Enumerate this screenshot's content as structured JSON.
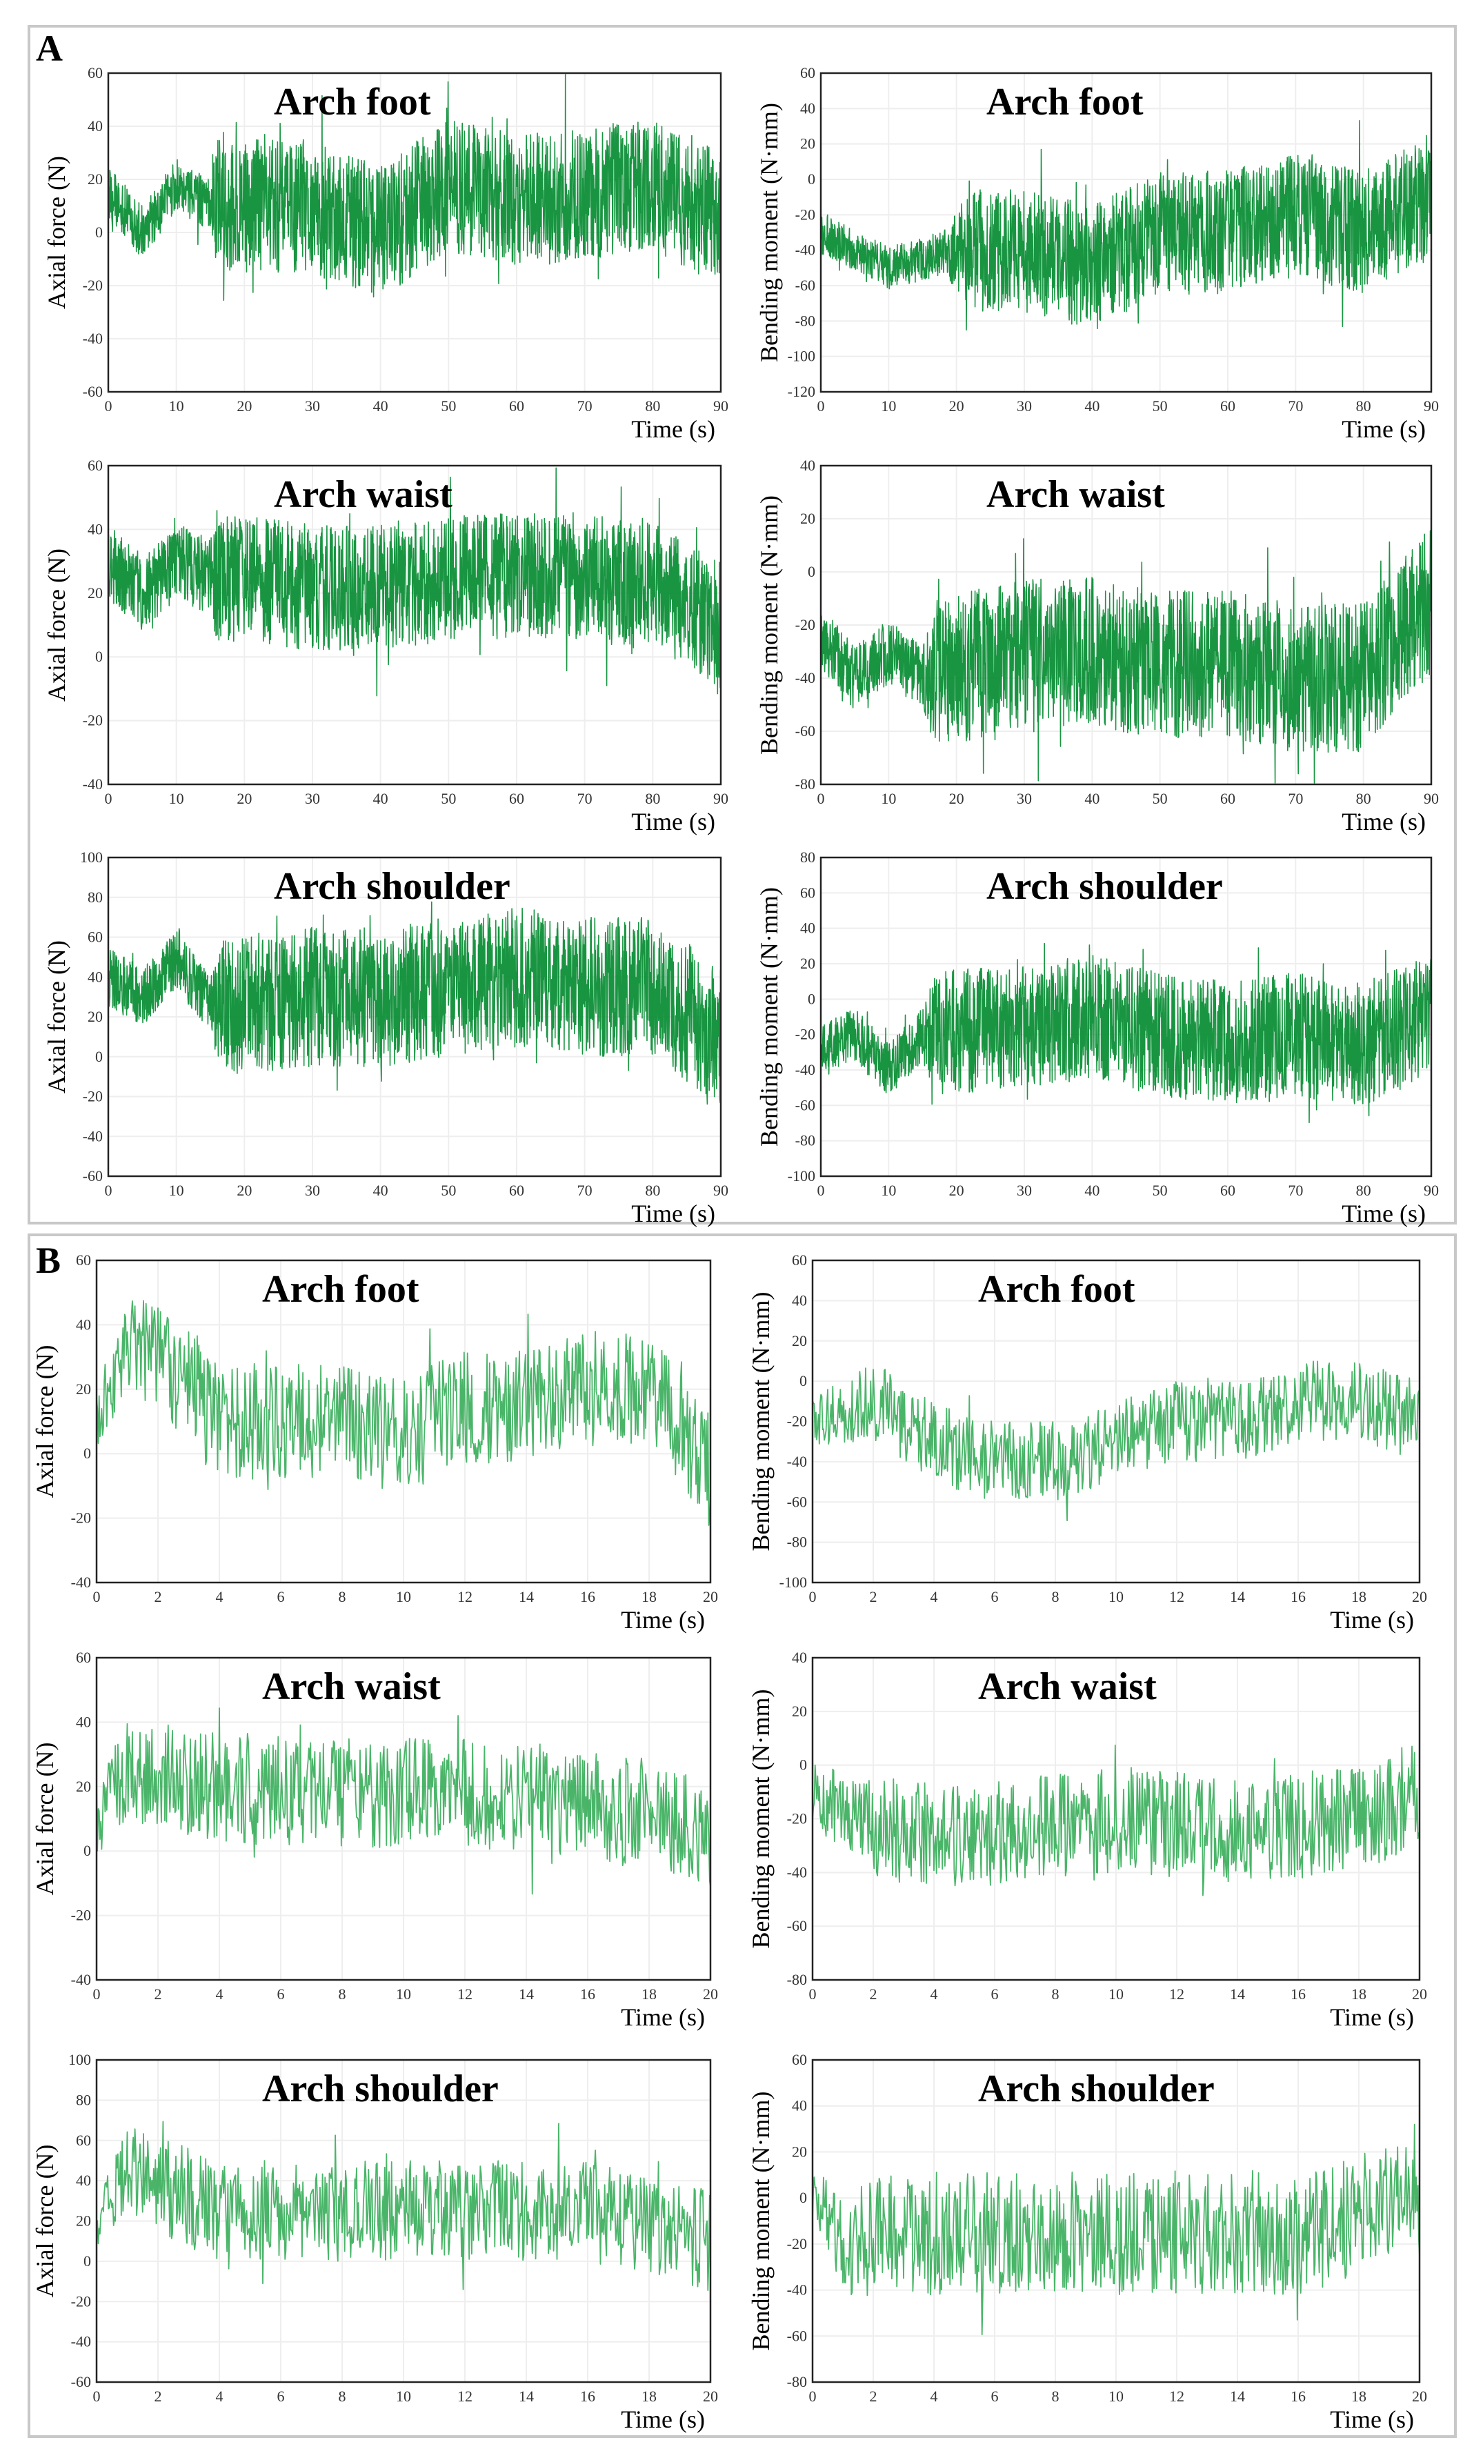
{
  "figure": {
    "panels": [
      {
        "label": "A",
        "line_color": "#008a2e",
        "density": "dense"
      },
      {
        "label": "B",
        "line_color": "#2aa84f",
        "density": "sparse"
      }
    ]
  },
  "chart_data": [
    {
      "type": "line",
      "panel": "A",
      "title": "Arch foot",
      "xlabel": "Time (s)",
      "ylabel": "Axial force (N)",
      "xlim": [
        0,
        90
      ],
      "ylim": [
        -60,
        60
      ],
      "xticks": [
        0,
        10,
        20,
        30,
        40,
        50,
        60,
        70,
        80,
        90
      ],
      "yticks": [
        -60,
        -40,
        -20,
        0,
        20,
        40,
        60
      ],
      "signal": {
        "mean": [
          [
            0,
            15
          ],
          [
            5,
            0
          ],
          [
            10,
            18
          ],
          [
            15,
            10
          ],
          [
            30,
            10
          ],
          [
            40,
            0
          ],
          [
            50,
            18
          ],
          [
            60,
            12
          ],
          [
            70,
            15
          ],
          [
            80,
            18
          ],
          [
            90,
            5
          ]
        ],
        "amp": [
          [
            0,
            10
          ],
          [
            15,
            10
          ],
          [
            16,
            25
          ],
          [
            90,
            25
          ]
        ]
      }
    },
    {
      "type": "line",
      "panel": "A",
      "title": "Arch foot",
      "xlabel": "Time (s)",
      "ylabel": "Bending moment (N·mm)",
      "xlim": [
        0,
        90
      ],
      "ylim": [
        -120,
        60
      ],
      "xticks": [
        0,
        10,
        20,
        30,
        40,
        50,
        60,
        70,
        80,
        90
      ],
      "yticks": [
        -120,
        -100,
        -80,
        -60,
        -40,
        -20,
        0,
        20,
        40,
        60
      ],
      "signal": {
        "mean": [
          [
            0,
            -30
          ],
          [
            10,
            -50
          ],
          [
            20,
            -40
          ],
          [
            30,
            -40
          ],
          [
            40,
            -50
          ],
          [
            50,
            -30
          ],
          [
            60,
            -30
          ],
          [
            70,
            -20
          ],
          [
            80,
            -30
          ],
          [
            90,
            -10
          ]
        ],
        "amp": [
          [
            0,
            12
          ],
          [
            18,
            12
          ],
          [
            22,
            35
          ],
          [
            90,
            35
          ]
        ]
      }
    },
    {
      "type": "line",
      "panel": "A",
      "title": "Arch waist",
      "xlabel": "Time (s)",
      "ylabel": "Axial force (N)",
      "xlim": [
        0,
        90
      ],
      "ylim": [
        -40,
        60
      ],
      "xticks": [
        0,
        10,
        20,
        30,
        40,
        50,
        60,
        70,
        80,
        90
      ],
      "yticks": [
        -40,
        -20,
        0,
        20,
        40,
        60
      ],
      "signal": {
        "mean": [
          [
            0,
            30
          ],
          [
            5,
            20
          ],
          [
            10,
            30
          ],
          [
            15,
            25
          ],
          [
            30,
            22
          ],
          [
            40,
            22
          ],
          [
            50,
            25
          ],
          [
            60,
            25
          ],
          [
            70,
            25
          ],
          [
            80,
            22
          ],
          [
            90,
            10
          ]
        ],
        "amp": [
          [
            0,
            12
          ],
          [
            15,
            12
          ],
          [
            16,
            20
          ],
          [
            90,
            20
          ]
        ]
      }
    },
    {
      "type": "line",
      "panel": "A",
      "title": "Arch waist",
      "xlabel": "Time (s)",
      "ylabel": "Bending moment (N·mm)",
      "xlim": [
        0,
        90
      ],
      "ylim": [
        -80,
        40
      ],
      "xticks": [
        0,
        10,
        20,
        30,
        40,
        50,
        60,
        70,
        80,
        90
      ],
      "yticks": [
        -80,
        -60,
        -40,
        -20,
        0,
        20,
        40
      ],
      "signal": {
        "mean": [
          [
            0,
            -25
          ],
          [
            5,
            -40
          ],
          [
            10,
            -30
          ],
          [
            15,
            -40
          ],
          [
            30,
            -30
          ],
          [
            40,
            -30
          ],
          [
            50,
            -35
          ],
          [
            60,
            -35
          ],
          [
            70,
            -40
          ],
          [
            80,
            -40
          ],
          [
            90,
            -10
          ]
        ],
        "amp": [
          [
            0,
            12
          ],
          [
            15,
            12
          ],
          [
            17,
            28
          ],
          [
            90,
            28
          ]
        ]
      }
    },
    {
      "type": "line",
      "panel": "A",
      "title": "Arch shoulder",
      "xlabel": "Time (s)",
      "ylabel": "Axial force (N)",
      "xlim": [
        0,
        90
      ],
      "ylim": [
        -60,
        100
      ],
      "xticks": [
        0,
        10,
        20,
        30,
        40,
        50,
        60,
        70,
        80,
        90
      ],
      "yticks": [
        -60,
        -40,
        -20,
        0,
        20,
        40,
        60,
        80,
        100
      ],
      "signal": {
        "mean": [
          [
            0,
            40
          ],
          [
            5,
            30
          ],
          [
            10,
            50
          ],
          [
            15,
            25
          ],
          [
            30,
            30
          ],
          [
            40,
            30
          ],
          [
            50,
            35
          ],
          [
            60,
            40
          ],
          [
            70,
            35
          ],
          [
            80,
            35
          ],
          [
            90,
            10
          ]
        ],
        "amp": [
          [
            0,
            15
          ],
          [
            15,
            15
          ],
          [
            17,
            35
          ],
          [
            90,
            35
          ]
        ]
      }
    },
    {
      "type": "line",
      "panel": "A",
      "title": "Arch shoulder",
      "xlabel": "Time (s)",
      "ylabel": "Bending moment (N·mm)",
      "xlim": [
        0,
        90
      ],
      "ylim": [
        -100,
        80
      ],
      "xticks": [
        0,
        10,
        20,
        30,
        40,
        50,
        60,
        70,
        80,
        90
      ],
      "yticks": [
        -100,
        -80,
        -60,
        -40,
        -20,
        0,
        20,
        40,
        60,
        80
      ],
      "signal": {
        "mean": [
          [
            0,
            -30
          ],
          [
            5,
            -20
          ],
          [
            10,
            -40
          ],
          [
            15,
            -20
          ],
          [
            30,
            -15
          ],
          [
            40,
            -10
          ],
          [
            50,
            -20
          ],
          [
            60,
            -25
          ],
          [
            70,
            -20
          ],
          [
            80,
            -25
          ],
          [
            90,
            -10
          ]
        ],
        "amp": [
          [
            0,
            15
          ],
          [
            15,
            15
          ],
          [
            17,
            35
          ],
          [
            90,
            35
          ]
        ]
      }
    },
    {
      "type": "line",
      "panel": "B",
      "title": "Arch foot",
      "xlabel": "Time (s)",
      "ylabel": "Axial force (N)",
      "xlim": [
        0,
        20
      ],
      "ylim": [
        -40,
        60
      ],
      "xticks": [
        0,
        2,
        4,
        6,
        8,
        10,
        12,
        14,
        16,
        18,
        20
      ],
      "yticks": [
        -40,
        -20,
        0,
        20,
        40,
        60
      ],
      "signal": {
        "mean": [
          [
            0,
            10
          ],
          [
            1,
            35
          ],
          [
            2,
            30
          ],
          [
            4,
            10
          ],
          [
            6,
            10
          ],
          [
            8,
            10
          ],
          [
            10,
            5
          ],
          [
            12,
            15
          ],
          [
            14,
            15
          ],
          [
            16,
            20
          ],
          [
            18,
            20
          ],
          [
            20,
            -5
          ]
        ],
        "amp": [
          [
            0,
            10
          ],
          [
            2,
            18
          ],
          [
            20,
            18
          ]
        ]
      }
    },
    {
      "type": "line",
      "panel": "B",
      "title": "Arch foot",
      "xlabel": "Time (s)",
      "ylabel": "Bending moment (N·mm)",
      "xlim": [
        0,
        20
      ],
      "ylim": [
        -100,
        60
      ],
      "xticks": [
        0,
        2,
        4,
        6,
        8,
        10,
        12,
        14,
        16,
        18,
        20
      ],
      "yticks": [
        -100,
        -80,
        -60,
        -40,
        -20,
        0,
        20,
        40,
        60
      ],
      "signal": {
        "mean": [
          [
            0,
            -20
          ],
          [
            2,
            -10
          ],
          [
            4,
            -30
          ],
          [
            6,
            -40
          ],
          [
            8,
            -40
          ],
          [
            10,
            -30
          ],
          [
            12,
            -20
          ],
          [
            14,
            -20
          ],
          [
            16,
            -10
          ],
          [
            18,
            -10
          ],
          [
            20,
            -20
          ]
        ],
        "amp": [
          [
            0,
            12
          ],
          [
            2,
            20
          ],
          [
            20,
            20
          ]
        ]
      }
    },
    {
      "type": "line",
      "panel": "B",
      "title": "Arch waist",
      "xlabel": "Time (s)",
      "ylabel": "Axial force (N)",
      "xlim": [
        0,
        20
      ],
      "ylim": [
        -40,
        60
      ],
      "xticks": [
        0,
        2,
        4,
        6,
        8,
        10,
        12,
        14,
        16,
        18,
        20
      ],
      "yticks": [
        -40,
        -20,
        0,
        20,
        40,
        60
      ],
      "signal": {
        "mean": [
          [
            0,
            10
          ],
          [
            1,
            25
          ],
          [
            4,
            20
          ],
          [
            8,
            18
          ],
          [
            12,
            18
          ],
          [
            16,
            15
          ],
          [
            20,
            5
          ]
        ],
        "amp": [
          [
            0,
            12
          ],
          [
            2,
            17
          ],
          [
            20,
            17
          ]
        ]
      }
    },
    {
      "type": "line",
      "panel": "B",
      "title": "Arch waist",
      "xlabel": "Time (s)",
      "ylabel": "Bending moment (N·mm)",
      "xlim": [
        0,
        20
      ],
      "ylim": [
        -80,
        40
      ],
      "xticks": [
        0,
        2,
        4,
        6,
        8,
        10,
        12,
        14,
        16,
        18,
        20
      ],
      "yticks": [
        -80,
        -60,
        -40,
        -20,
        0,
        20,
        40
      ],
      "signal": {
        "mean": [
          [
            0,
            -10
          ],
          [
            2,
            -25
          ],
          [
            6,
            -25
          ],
          [
            10,
            -20
          ],
          [
            14,
            -25
          ],
          [
            18,
            -20
          ],
          [
            20,
            -10
          ]
        ],
        "amp": [
          [
            0,
            12
          ],
          [
            2,
            20
          ],
          [
            20,
            20
          ]
        ]
      }
    },
    {
      "type": "line",
      "panel": "B",
      "title": "Arch shoulder",
      "xlabel": "Time (s)",
      "ylabel": "Axial force (N)",
      "xlim": [
        0,
        20
      ],
      "ylim": [
        -60,
        100
      ],
      "xticks": [
        0,
        2,
        4,
        6,
        8,
        10,
        12,
        14,
        16,
        18,
        20
      ],
      "yticks": [
        -60,
        -40,
        -20,
        0,
        20,
        40,
        60,
        80,
        100
      ],
      "signal": {
        "mean": [
          [
            0,
            20
          ],
          [
            1,
            45
          ],
          [
            4,
            25
          ],
          [
            8,
            25
          ],
          [
            12,
            25
          ],
          [
            16,
            25
          ],
          [
            20,
            10
          ]
        ],
        "amp": [
          [
            0,
            15
          ],
          [
            2,
            25
          ],
          [
            20,
            25
          ]
        ]
      }
    },
    {
      "type": "line",
      "panel": "B",
      "title": "Arch shoulder",
      "xlabel": "Time (s)",
      "ylabel": "Bending moment (N·mm)",
      "xlim": [
        0,
        20
      ],
      "ylim": [
        -80,
        60
      ],
      "xticks": [
        0,
        2,
        4,
        6,
        8,
        10,
        12,
        14,
        16,
        18,
        20
      ],
      "yticks": [
        -80,
        -60,
        -40,
        -20,
        0,
        20,
        40,
        60
      ],
      "signal": {
        "mean": [
          [
            0,
            0
          ],
          [
            1,
            -20
          ],
          [
            4,
            -15
          ],
          [
            8,
            -15
          ],
          [
            12,
            -15
          ],
          [
            16,
            -15
          ],
          [
            20,
            0
          ]
        ],
        "amp": [
          [
            0,
            15
          ],
          [
            2,
            27
          ],
          [
            20,
            27
          ]
        ]
      }
    }
  ]
}
